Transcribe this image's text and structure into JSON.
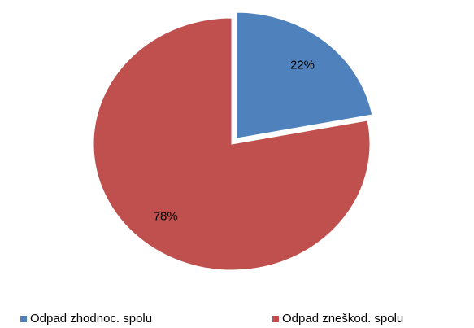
{
  "chart_data": {
    "type": "pie",
    "categories": [
      "Odpad zhodnoc. spolu",
      "Odpad zneškod. spolu"
    ],
    "values": [
      22,
      78
    ],
    "value_labels": [
      "22%",
      "78%"
    ],
    "colors": [
      "#4f81bd",
      "#c0504d"
    ],
    "legend": "bottom"
  }
}
